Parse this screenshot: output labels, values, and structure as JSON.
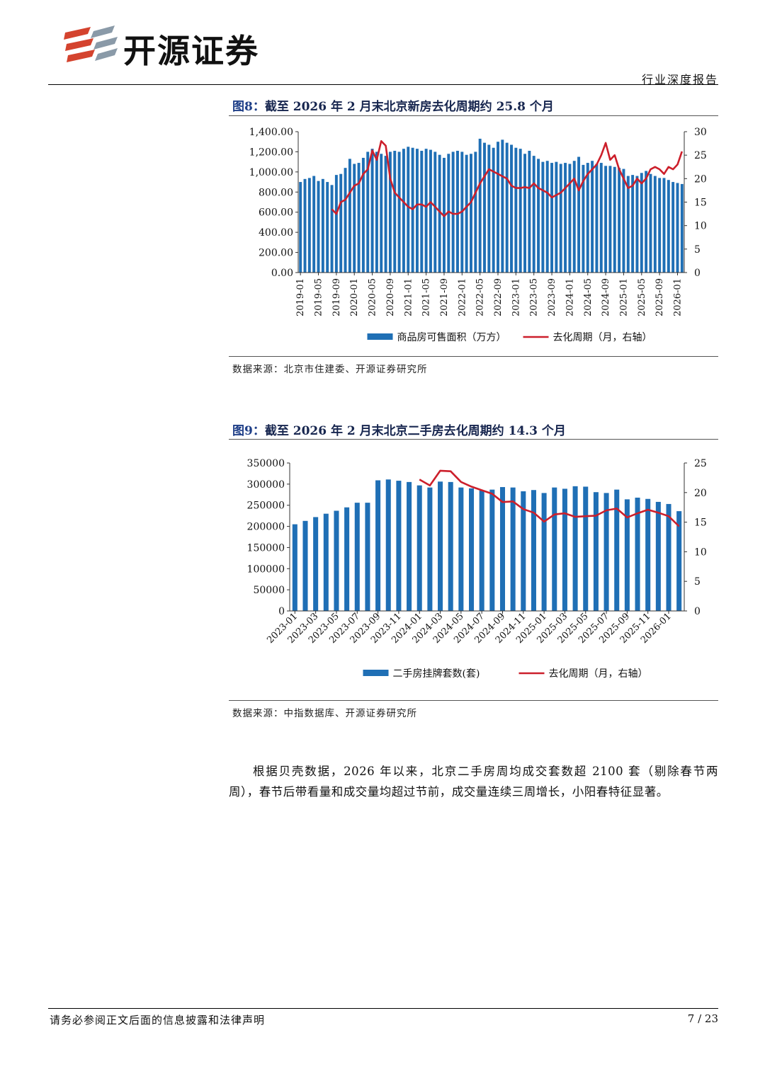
{
  "header": {
    "company": "开源证券",
    "report_type": "行业深度报告"
  },
  "figure8": {
    "label": "图8：",
    "title": "截至 2026 年 2 月末北京新房去化周期约 25.8 个月",
    "source": "数据来源：北京市住建委、开源证券研究所"
  },
  "figure9": {
    "label": "图9：",
    "title": "截至 2026 年 2 月末北京二手房去化周期约 14.3 个月",
    "source": "数据来源：中指数据库、开源证券研究所"
  },
  "chart_data": [
    {
      "type": "bar",
      "combo": "bar+line",
      "categories": [
        "2019-01",
        "2019-02",
        "2019-03",
        "2019-04",
        "2019-05",
        "2019-06",
        "2019-07",
        "2019-08",
        "2019-09",
        "2019-10",
        "2019-11",
        "2019-12",
        "2020-01",
        "2020-02",
        "2020-03",
        "2020-04",
        "2020-05",
        "2020-06",
        "2020-07",
        "2020-08",
        "2020-09",
        "2020-10",
        "2020-11",
        "2020-12",
        "2021-01",
        "2021-02",
        "2021-03",
        "2021-04",
        "2021-05",
        "2021-06",
        "2021-07",
        "2021-08",
        "2021-09",
        "2021-10",
        "2021-11",
        "2021-12",
        "2022-01",
        "2022-02",
        "2022-03",
        "2022-04",
        "2022-05",
        "2022-06",
        "2022-07",
        "2022-08",
        "2022-09",
        "2022-10",
        "2022-11",
        "2022-12",
        "2023-01",
        "2023-02",
        "2023-03",
        "2023-04",
        "2023-05",
        "2023-06",
        "2023-07",
        "2023-08",
        "2023-09",
        "2023-10",
        "2023-11",
        "2023-12",
        "2024-01",
        "2024-02",
        "2024-03",
        "2024-04",
        "2024-05",
        "2024-06",
        "2024-07",
        "2024-08",
        "2024-09",
        "2024-10",
        "2024-11",
        "2024-12",
        "2025-01",
        "2025-02",
        "2025-03",
        "2025-04",
        "2025-05",
        "2025-06",
        "2025-07",
        "2025-08",
        "2025-09",
        "2025-10",
        "2025-11",
        "2025-12",
        "2026-01",
        "2026-02"
      ],
      "x_tick_labels": [
        "2019-01",
        "2019-05",
        "2019-09",
        "2020-01",
        "2020-05",
        "2020-09",
        "2021-01",
        "2021-05",
        "2021-09",
        "2022-01",
        "2022-05",
        "2022-09",
        "2023-01",
        "2023-05",
        "2023-09",
        "2024-01",
        "2024-05",
        "2024-09",
        "2025-01",
        "2025-05",
        "2025-09",
        "2026-01"
      ],
      "series": [
        {
          "name": "商品房可售面积（万方）",
          "axis": "left",
          "type": "bar",
          "color": "#1f6fb5",
          "values": [
            900,
            930,
            940,
            960,
            910,
            930,
            900,
            870,
            970,
            980,
            1040,
            1130,
            1080,
            1090,
            1140,
            1200,
            1230,
            1200,
            1180,
            1160,
            1200,
            1210,
            1200,
            1230,
            1250,
            1240,
            1230,
            1210,
            1230,
            1220,
            1200,
            1170,
            1140,
            1180,
            1200,
            1210,
            1200,
            1170,
            1180,
            1200,
            1330,
            1290,
            1270,
            1240,
            1300,
            1320,
            1290,
            1270,
            1240,
            1230,
            1180,
            1210,
            1160,
            1130,
            1100,
            1110,
            1090,
            1100,
            1080,
            1090,
            1080,
            1110,
            1150,
            1070,
            1090,
            1110,
            1080,
            1090,
            1060,
            1060,
            1050,
            1040,
            1030,
            960,
            970,
            960,
            990,
            1010,
            980,
            960,
            940,
            940,
            920,
            900,
            890,
            880
          ]
        },
        {
          "name": "去化周期（月，右轴）",
          "axis": "right",
          "type": "line",
          "color": "#cc1f2b",
          "values": [
            null,
            null,
            null,
            null,
            null,
            null,
            null,
            13.5,
            12.5,
            15,
            15.5,
            17,
            18.5,
            19,
            21,
            22,
            26,
            24,
            28,
            27,
            20,
            17,
            16,
            15,
            14,
            13.5,
            14.5,
            14.5,
            14,
            15,
            14,
            13,
            12,
            13,
            12.5,
            12.5,
            13,
            14,
            15,
            17,
            19,
            20.5,
            22,
            21.5,
            21,
            20.5,
            20,
            18.5,
            18,
            18,
            18.2,
            18,
            19,
            18,
            17.5,
            17,
            16,
            16.5,
            17,
            18,
            19,
            20,
            17.5,
            19.5,
            21,
            22,
            23,
            25,
            27.6,
            24,
            25,
            22,
            20,
            18,
            18.5,
            20,
            19,
            20,
            22,
            22.5,
            22,
            21,
            22.5,
            22,
            23,
            25.8
          ]
        }
      ],
      "ylim_left": [
        0,
        1400
      ],
      "ylim_right": [
        0,
        30
      ],
      "y_ticks_left": [
        "0.00",
        "200.00",
        "400.00",
        "600.00",
        "800.00",
        "1,000.00",
        "1,200.00",
        "1,400.00"
      ],
      "y_ticks_right": [
        "0",
        "5",
        "10",
        "15",
        "20",
        "25",
        "30"
      ],
      "legend_position": "bottom"
    },
    {
      "type": "bar",
      "combo": "bar+line",
      "categories": [
        "2023-01",
        "2023-02",
        "2023-03",
        "2023-04",
        "2023-05",
        "2023-06",
        "2023-07",
        "2023-08",
        "2023-09",
        "2023-10",
        "2023-11",
        "2023-12",
        "2024-01",
        "2024-02",
        "2024-03",
        "2024-04",
        "2024-05",
        "2024-06",
        "2024-07",
        "2024-08",
        "2024-09",
        "2024-10",
        "2024-11",
        "2024-12",
        "2025-01",
        "2025-02",
        "2025-03",
        "2025-04",
        "2025-05",
        "2025-06",
        "2025-07",
        "2025-08",
        "2025-09",
        "2025-10",
        "2025-11",
        "2025-12",
        "2026-01",
        "2026-02"
      ],
      "x_tick_labels": [
        "2023-01",
        "2023-03",
        "2023-05",
        "2023-07",
        "2023-09",
        "2023-11",
        "2024-01",
        "2024-03",
        "2024-05",
        "2024-07",
        "2024-09",
        "2024-11",
        "2025-01",
        "2025-03",
        "2025-05",
        "2025-07",
        "2025-09",
        "2025-11",
        "2026-01"
      ],
      "series": [
        {
          "name": "二手房挂牌套数(套)",
          "axis": "left",
          "type": "bar",
          "color": "#1f6fb5",
          "values": [
            205000,
            213000,
            222000,
            230000,
            237000,
            245000,
            256000,
            256000,
            309000,
            311000,
            308000,
            305000,
            297000,
            292000,
            306000,
            305000,
            292000,
            290000,
            285000,
            287000,
            293000,
            292000,
            283000,
            286000,
            279000,
            292000,
            289000,
            295000,
            294000,
            281000,
            279000,
            287000,
            264000,
            268000,
            265000,
            258000,
            253000,
            236000
          ]
        },
        {
          "name": "去化周期（月，右轴）",
          "axis": "right",
          "type": "line",
          "color": "#cc1f2b",
          "values": [
            null,
            null,
            null,
            null,
            null,
            null,
            null,
            null,
            null,
            null,
            null,
            null,
            22.2,
            21.2,
            23.7,
            23.6,
            21.8,
            21.0,
            20.4,
            19.8,
            18.4,
            18.5,
            17.2,
            16.6,
            15.1,
            16.3,
            16.5,
            15.9,
            16.0,
            16.1,
            17.0,
            17.3,
            15.8,
            16.5,
            17.1,
            16.6,
            16.0,
            14.3
          ]
        }
      ],
      "ylim_left": [
        0,
        350000
      ],
      "ylim_right": [
        0,
        25
      ],
      "y_ticks_left": [
        "0",
        "50000",
        "100000",
        "150000",
        "200000",
        "250000",
        "300000",
        "350000"
      ],
      "y_ticks_right": [
        "0",
        "5",
        "10",
        "15",
        "20",
        "25"
      ],
      "legend_position": "bottom"
    }
  ],
  "body": {
    "paragraph": "根据贝壳数据，2026 年以来，北京二手房周均成交套数超 2100 套（剔除春节两周），春节后带看量和成交量均超过节前，成交量连续三周增长，小阳春特征显著。"
  },
  "footer": {
    "disclaimer": "请务必参阅正文后面的信息披露和法律声明",
    "page": "7 / 23"
  }
}
